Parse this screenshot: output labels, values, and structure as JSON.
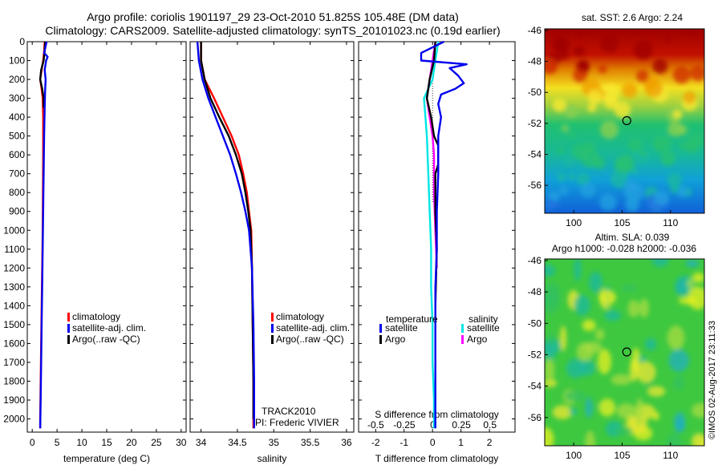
{
  "header": {
    "line1": "Argo profile: coriolis 1901197_29 23-Oct-2010 51.825S 105.48E (DM data)",
    "line2": "Climatology: CARS2009. Satellite-adjusted climatology: synTS_20101023.nc (0.19d earlier)"
  },
  "footer": {
    "stamp": "©IMOS 02-Aug-2017 23:11:33"
  },
  "colors": {
    "clim": "#ff0000",
    "sat": "#0000ee",
    "argo": "#000000",
    "sal_sat": "#00e5e5",
    "sal_argo": "#ff00ff"
  },
  "chart_data": [
    {
      "id": "temperature",
      "type": "line",
      "xlabel": "temperature (deg C)",
      "ylabel": "",
      "xlim": [
        -1,
        31
      ],
      "ylim": [
        2070,
        0
      ],
      "xticks": [
        "0",
        "5",
        "10",
        "15",
        "20",
        "25",
        "30"
      ],
      "yticks": [
        "0",
        "100",
        "200",
        "300",
        "400",
        "500",
        "600",
        "700",
        "800",
        "900",
        "1000",
        "1100",
        "1200",
        "1300",
        "1400",
        "1500",
        "1600",
        "1700",
        "1800",
        "1900",
        "2000"
      ],
      "legend": [
        "climatology",
        "satellite-adj. clim.",
        "Argo(..raw -QC)"
      ],
      "legend_colors": [
        "#ff0000",
        "#0000ee",
        "#000000"
      ],
      "series": [
        {
          "name": "climatology",
          "color": "#ff0000",
          "points": [
            [
              2.5,
              0
            ],
            [
              2.4,
              50
            ],
            [
              2.2,
              100
            ],
            [
              1.9,
              150
            ],
            [
              1.6,
              200
            ],
            [
              1.9,
              250
            ],
            [
              2.1,
              300
            ],
            [
              2.2,
              400
            ],
            [
              2.2,
              600
            ],
            [
              2.15,
              800
            ],
            [
              2.1,
              1000
            ],
            [
              2.0,
              1200
            ],
            [
              1.9,
              1400
            ],
            [
              1.8,
              1600
            ],
            [
              1.7,
              1800
            ],
            [
              1.6,
              2000
            ],
            [
              1.6,
              2050
            ]
          ]
        },
        {
          "name": "Argo(..raw -QC)",
          "color": "#000000",
          "points": [
            [
              2.6,
              0
            ],
            [
              2.5,
              50
            ],
            [
              2.3,
              100
            ],
            [
              1.8,
              150
            ],
            [
              1.6,
              200
            ],
            [
              2.0,
              250
            ],
            [
              2.3,
              300
            ],
            [
              2.3,
              350
            ]
          ]
        },
        {
          "name": "satellite-adj. clim.",
          "color": "#0000ee",
          "points": [
            [
              2.9,
              0
            ],
            [
              2.4,
              60
            ],
            [
              3.1,
              80
            ],
            [
              2.8,
              100
            ],
            [
              2.5,
              150
            ],
            [
              2.7,
              200
            ],
            [
              2.6,
              250
            ],
            [
              2.5,
              350
            ],
            [
              2.4,
              500
            ],
            [
              2.3,
              700
            ],
            [
              2.2,
              900
            ],
            [
              2.1,
              1100
            ],
            [
              2.0,
              1300
            ],
            [
              1.9,
              1500
            ],
            [
              1.8,
              1700
            ],
            [
              1.7,
              1900
            ],
            [
              1.6,
              2050
            ]
          ]
        }
      ]
    },
    {
      "id": "salinity",
      "type": "line",
      "xlabel": "salinity",
      "xlim": [
        33.85,
        36.1
      ],
      "ylim": [
        2070,
        0
      ],
      "xticks": [
        "34",
        "34.5",
        "35",
        "35.5",
        "36"
      ],
      "legend": [
        "climatology",
        "satellite-adj. clim.",
        "Argo(..raw -QC)"
      ],
      "legend_colors": [
        "#ff0000",
        "#0000ee",
        "#000000"
      ],
      "annotations": [
        "TRACK2010",
        "PI: Frederic VIVIER"
      ],
      "series": [
        {
          "name": "climatology",
          "color": "#ff0000",
          "points": [
            [
              34.0,
              0
            ],
            [
              34.0,
              100
            ],
            [
              34.05,
              200
            ],
            [
              34.18,
              300
            ],
            [
              34.3,
              400
            ],
            [
              34.42,
              500
            ],
            [
              34.52,
              600
            ],
            [
              34.58,
              700
            ],
            [
              34.63,
              800
            ],
            [
              34.66,
              900
            ],
            [
              34.69,
              1000
            ],
            [
              34.7,
              1200
            ],
            [
              34.71,
              1500
            ],
            [
              34.72,
              1800
            ],
            [
              34.72,
              2050
            ]
          ]
        },
        {
          "name": "Argo(..raw -QC)",
          "color": "#000000",
          "points": [
            [
              34.0,
              0
            ],
            [
              34.0,
              100
            ],
            [
              34.05,
              200
            ],
            [
              34.13,
              300
            ],
            [
              34.25,
              400
            ],
            [
              34.38,
              500
            ],
            [
              34.48,
              600
            ],
            [
              34.56,
              700
            ],
            [
              34.61,
              800
            ],
            [
              34.65,
              900
            ],
            [
              34.68,
              1000
            ],
            [
              34.7,
              1200
            ],
            [
              34.71,
              1500
            ],
            [
              34.72,
              1800
            ],
            [
              34.72,
              2000
            ]
          ]
        },
        {
          "name": "satellite-adj. clim.",
          "color": "#0000ee",
          "points": [
            [
              33.95,
              0
            ],
            [
              33.97,
              100
            ],
            [
              34.02,
              200
            ],
            [
              34.1,
              300
            ],
            [
              34.2,
              400
            ],
            [
              34.3,
              500
            ],
            [
              34.4,
              600
            ],
            [
              34.48,
              700
            ],
            [
              34.55,
              800
            ],
            [
              34.61,
              900
            ],
            [
              34.66,
              1000
            ],
            [
              34.7,
              1200
            ],
            [
              34.72,
              1500
            ],
            [
              34.73,
              1800
            ],
            [
              34.73,
              2050
            ]
          ]
        }
      ]
    },
    {
      "id": "difference",
      "type": "line",
      "xlabel": "T difference from climatology",
      "xlabel_top": "S difference from climatology",
      "xlim": [
        -2.6,
        2.9
      ],
      "ylim": [
        2070,
        0
      ],
      "xticks": [
        "-2",
        "-1",
        "0",
        "1",
        "2"
      ],
      "xticks_top": [
        "-0.5",
        "-0.25",
        "0",
        "0.25",
        "0.5"
      ],
      "legend_titles": [
        "temperature",
        "salinity"
      ],
      "legend": [
        "satellite",
        "Argo",
        "satellite",
        "Argo"
      ],
      "legend_colors": [
        "#0000ee",
        "#000000",
        "#00e5e5",
        "#ff00ff"
      ],
      "series": [
        {
          "name": "satellite",
          "group": "salinity",
          "color": "#00e5e5",
          "points": [
            [
              0.2,
              0
            ],
            [
              0.1,
              100
            ],
            [
              0.0,
              200
            ],
            [
              -0.3,
              300
            ],
            [
              -0.25,
              400
            ],
            [
              -0.2,
              500
            ],
            [
              -0.15,
              700
            ],
            [
              -0.1,
              900
            ],
            [
              -0.05,
              1100
            ],
            [
              -0.05,
              1300
            ],
            [
              0.0,
              1500
            ],
            [
              0.0,
              1700
            ],
            [
              0.05,
              1900
            ],
            [
              0.05,
              2050
            ]
          ]
        },
        {
          "name": "Argo",
          "group": "salinity",
          "color": "#ff00ff",
          "points": [
            [
              0.1,
              0
            ],
            [
              0.0,
              100
            ],
            [
              -0.1,
              200
            ],
            [
              -0.2,
              300
            ],
            [
              -0.1,
              400
            ],
            [
              0.0,
              500
            ],
            [
              0.05,
              600
            ],
            [
              0.05,
              800
            ],
            [
              0.1,
              1000
            ],
            [
              0.15,
              1200
            ]
          ]
        },
        {
          "name": "Argo",
          "group": "temperature",
          "color": "#000000",
          "points": [
            [
              0.1,
              0
            ],
            [
              0.05,
              100
            ],
            [
              -0.1,
              200
            ],
            [
              -0.2,
              300
            ],
            [
              -0.05,
              400
            ],
            [
              0.05,
              500
            ],
            [
              0.2,
              550
            ],
            [
              0.2,
              650
            ],
            [
              0.1,
              700
            ],
            [
              0.1,
              900
            ],
            [
              0.15,
              1100
            ],
            [
              0.1,
              1400
            ]
          ]
        },
        {
          "name": "satellite",
          "group": "temperature",
          "color": "#0000ee",
          "points": [
            [
              0.4,
              0
            ],
            [
              -0.4,
              60
            ],
            [
              -0.4,
              100
            ],
            [
              1.2,
              120
            ],
            [
              0.6,
              140
            ],
            [
              0.9,
              180
            ],
            [
              1.1,
              220
            ],
            [
              0.8,
              250
            ],
            [
              0.3,
              280
            ],
            [
              0.2,
              330
            ],
            [
              0.3,
              400
            ],
            [
              0.2,
              500
            ],
            [
              0.2,
              700
            ],
            [
              0.15,
              900
            ],
            [
              0.15,
              1100
            ],
            [
              0.1,
              1300
            ],
            [
              0.1,
              1500
            ],
            [
              0.1,
              1700
            ],
            [
              0.1,
              1900
            ],
            [
              0.1,
              2050
            ]
          ]
        }
      ]
    },
    {
      "id": "sst-map",
      "type": "heatmap",
      "title": "sat. SST: 2.6 Argo: 2.24",
      "xticks": [
        "100",
        "105",
        "110"
      ],
      "yticks": [
        "-46",
        "-48",
        "-50",
        "-52",
        "-54",
        "-56"
      ],
      "xlim": [
        97,
        113.5
      ],
      "ylim": [
        -57.8,
        -45.9
      ],
      "marker": [
        105.48,
        -51.825
      ]
    },
    {
      "id": "sla-map",
      "type": "heatmap",
      "title": "Altim. SLA: 0.039",
      "subtitle": "Argo h1000: -0.028 h2000: -0.036",
      "xticks": [
        "100",
        "105",
        "110"
      ],
      "yticks": [
        "-46",
        "-48",
        "-50",
        "-52",
        "-54",
        "-56"
      ],
      "xlim": [
        97,
        113.5
      ],
      "ylim": [
        -57.8,
        -45.9
      ],
      "marker": [
        105.48,
        -51.825
      ]
    }
  ]
}
